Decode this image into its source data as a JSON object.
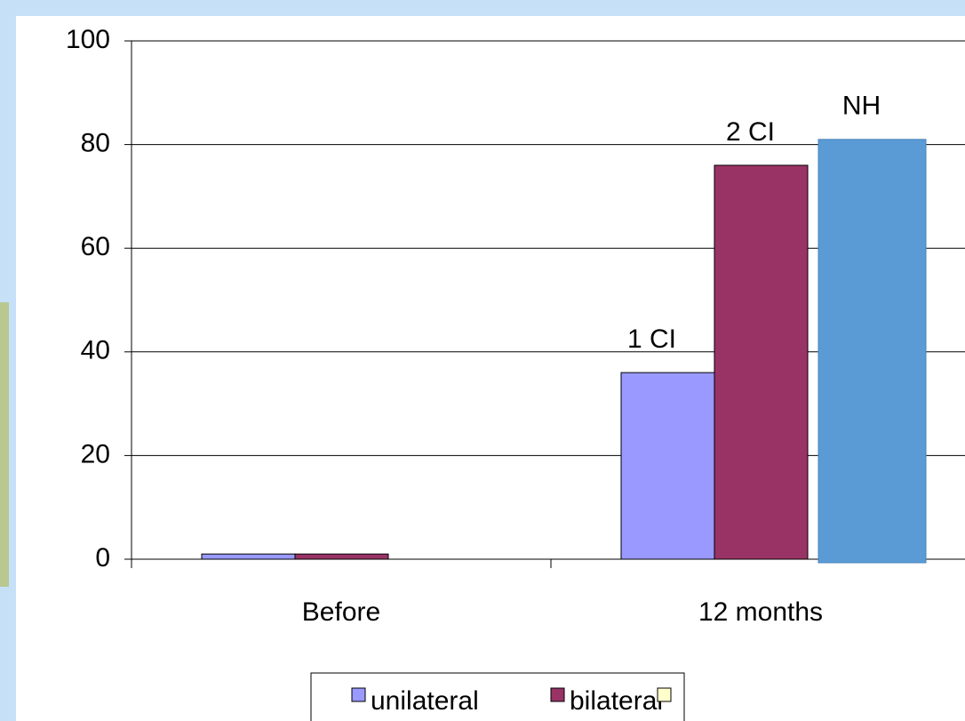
{
  "chart_data": {
    "type": "bar",
    "categories": [
      "Before",
      "12 months"
    ],
    "series": [
      {
        "name": "unilateral",
        "color": "#9999ff",
        "values": [
          1,
          36
        ]
      },
      {
        "name": "bilateral",
        "color": "#993366",
        "values": [
          1,
          76
        ]
      },
      {
        "color": "#5b9bd5",
        "legend_color": "#ffffcc",
        "values": [
          null,
          81
        ]
      }
    ],
    "annotations": [
      "1 CI",
      "2 CI",
      "NH"
    ],
    "ylim": [
      0,
      100
    ],
    "yticks": [
      0,
      20,
      40,
      60,
      80,
      100
    ],
    "grid": true
  }
}
